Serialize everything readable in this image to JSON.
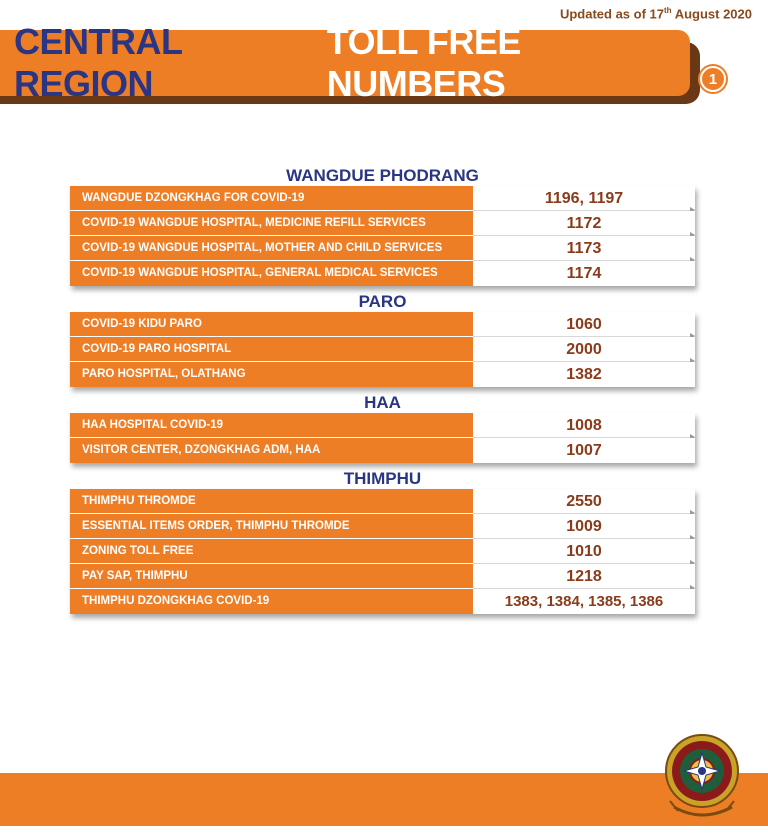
{
  "updated": {
    "prefix": "Updated as of 17",
    "suffix": "th",
    "rest": " August 2020"
  },
  "banner": {
    "title_part1": "CENTRAL REGION",
    "title_part2": "TOLL FREE NUMBERS",
    "page_number": "1"
  },
  "colors": {
    "orange": "#ee7e26",
    "navy": "#2a3583",
    "brown": "#8a3b1a"
  },
  "sections": [
    {
      "title": "WANGDUE PHODRANG",
      "rows": [
        {
          "label": "WANGDUE DZONGKHAG FOR COVID-19",
          "number": "1196, 1197"
        },
        {
          "label": "COVID-19 WANGDUE HOSPITAL, MEDICINE REFILL SERVICES",
          "number": "1172"
        },
        {
          "label": "COVID-19 WANGDUE HOSPITAL, MOTHER AND CHILD SERVICES",
          "number": "1173"
        },
        {
          "label": "COVID-19 WANGDUE HOSPITAL, GENERAL MEDICAL SERVICES",
          "number": "1174"
        }
      ]
    },
    {
      "title": "PARO",
      "rows": [
        {
          "label": "COVID-19  KIDU PARO",
          "number": "1060"
        },
        {
          "label": "COVID-19 PARO HOSPITAL",
          "number": "2000"
        },
        {
          "label": "PARO HOSPITAL, OLATHANG",
          "number": "1382"
        }
      ]
    },
    {
      "title": "HAA",
      "rows": [
        {
          "label": "HAA HOSPITAL COVID-19",
          "number": "1008"
        },
        {
          "label": "VISITOR CENTER, DZONGKHAG ADM, HAA",
          "number": "1007"
        }
      ]
    },
    {
      "title": "THIMPHU",
      "rows": [
        {
          "label": "THIMPHU THROMDE",
          "number": "2550"
        },
        {
          "label": "ESSENTIAL ITEMS ORDER, THIMPHU THROMDE",
          "number": "1009"
        },
        {
          "label": "ZONING TOLL FREE",
          "number": "1010"
        },
        {
          "label": "PAY SAP, THIMPHU",
          "number": "1218"
        },
        {
          "label": "THIMPHU DZONGKHAG COVID-19",
          "number": "1383, 1384, 1385, 1386"
        }
      ]
    }
  ]
}
